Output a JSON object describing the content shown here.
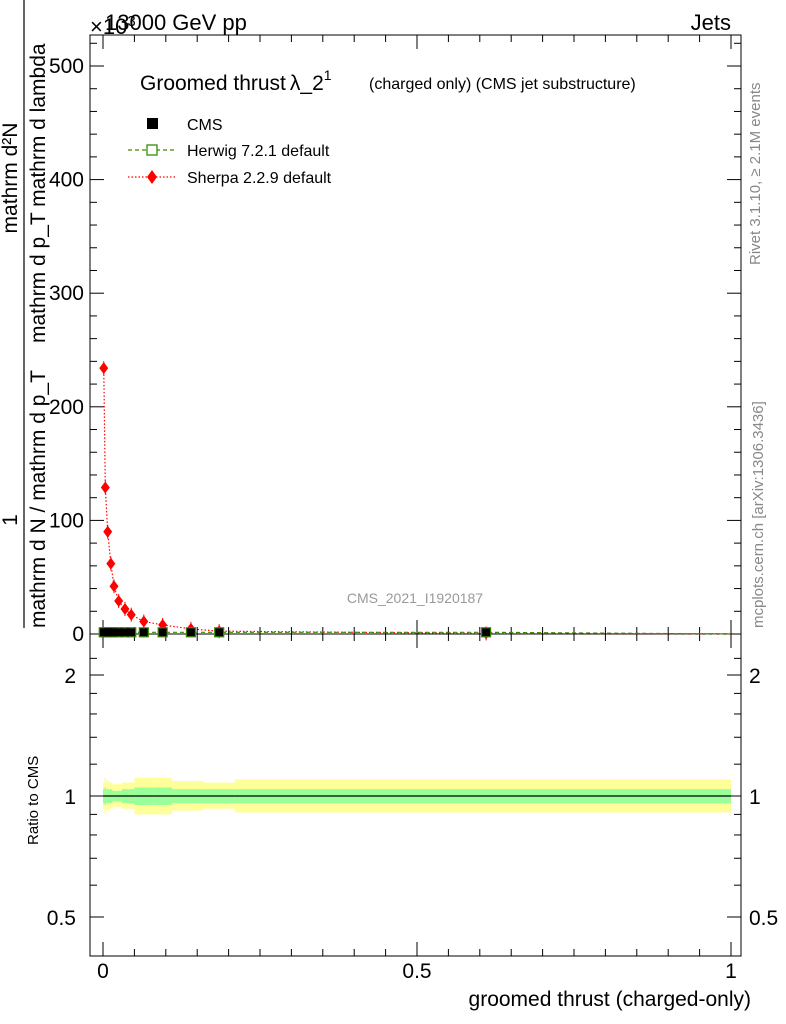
{
  "header": {
    "left": "13000 GeV pp",
    "right": "Jets",
    "exponent": "×10"
  },
  "title": {
    "main": "Groomed thrust",
    "lambda": "λ_2",
    "sup": "1",
    "sub": "(charged only) (CMS jet substructure)"
  },
  "legend": {
    "cms": "CMS",
    "herwig": "Herwig 7.2.1 default",
    "sherpa": "Sherpa 2.2.9 default"
  },
  "ylabel": {
    "top_num": "mathrm d²N",
    "top_den": "mathrm d p_T mathrm d lambda",
    "left_num": "1",
    "left_den": "mathrm d N / mathrm d p_T"
  },
  "watermark": "CMS_2021_I1920187",
  "side": {
    "rivet": "Rivet 3.1.10, ≥ 2.1M events",
    "mcplots": "mcplots.cern.ch [arXiv:1306.3436]"
  },
  "xlabel": "groomed thrust (charged-only)",
  "ratio_ylabel": "Ratio to CMS",
  "colors": {
    "cms": "#000000",
    "herwig": "#3a8a00",
    "sherpa": "#ff0000",
    "band_outer": "#ffff99",
    "band_inner": "#99ff99"
  },
  "chart_data": [
    {
      "type": "scatter",
      "xlabel": "groomed thrust (charged-only)",
      "xlim": [
        -0.02,
        1.0
      ],
      "ylim": [
        0,
        530
      ],
      "y_multiplier_label": "×10³",
      "xticks": [
        0,
        0.5,
        1
      ],
      "yticks": [
        0,
        100,
        200,
        300,
        400,
        500
      ],
      "series": [
        {
          "name": "CMS",
          "x": [
            0.0012,
            0.0037,
            0.0075,
            0.0125,
            0.0175,
            0.025,
            0.035,
            0.045,
            0.065,
            0.095,
            0.14,
            0.185,
            0.61
          ],
          "y": [
            1.5,
            1.5,
            1.5,
            1.5,
            1.5,
            1.5,
            1.5,
            1.5,
            1.5,
            1.5,
            1.5,
            1.5,
            1.5
          ]
        },
        {
          "name": "Herwig 7.2.1 default",
          "x": [
            0.0012,
            0.0037,
            0.0075,
            0.0125,
            0.0175,
            0.025,
            0.035,
            0.045,
            0.065,
            0.095,
            0.14,
            0.185,
            0.61
          ],
          "y": [
            1.5,
            1.5,
            1.5,
            1.5,
            1.5,
            1.5,
            1.5,
            1.5,
            1.5,
            1.5,
            1.5,
            1.5,
            1.5
          ]
        },
        {
          "name": "Sherpa 2.2.9 default",
          "x": [
            0.0012,
            0.0037,
            0.0075,
            0.0125,
            0.0175,
            0.025,
            0.035,
            0.045,
            0.065,
            0.095,
            0.14,
            0.185,
            0.61
          ],
          "y": [
            234,
            129,
            90,
            62,
            42,
            29,
            22,
            17,
            11,
            8,
            4.5,
            2.5,
            0.5
          ]
        }
      ]
    },
    {
      "type": "line",
      "ylabel": "Ratio to CMS",
      "xlim": [
        -0.02,
        1.0
      ],
      "ylim": [
        0.4,
        2.3
      ],
      "log_y": true,
      "xticks": [
        0,
        0.5,
        1
      ],
      "yticks": [
        0.5,
        1,
        2
      ],
      "bands": {
        "x_edges": [
          0,
          0.0025,
          0.005,
          0.01,
          0.015,
          0.02,
          0.03,
          0.04,
          0.05,
          0.08,
          0.11,
          0.16,
          0.21,
          1.0
        ],
        "outer_low": [
          0.93,
          0.9,
          0.92,
          0.93,
          0.94,
          0.94,
          0.93,
          0.93,
          0.9,
          0.9,
          0.92,
          0.93,
          0.91
        ],
        "outer_high": [
          1.08,
          1.11,
          1.09,
          1.08,
          1.07,
          1.07,
          1.08,
          1.08,
          1.11,
          1.11,
          1.09,
          1.08,
          1.1
        ],
        "inner_low": [
          0.96,
          0.95,
          0.96,
          0.96,
          0.97,
          0.97,
          0.96,
          0.96,
          0.95,
          0.95,
          0.96,
          0.96,
          0.96
        ],
        "inner_high": [
          1.04,
          1.05,
          1.04,
          1.04,
          1.03,
          1.03,
          1.04,
          1.04,
          1.05,
          1.05,
          1.04,
          1.04,
          1.04
        ]
      },
      "reference": 1.0
    }
  ]
}
